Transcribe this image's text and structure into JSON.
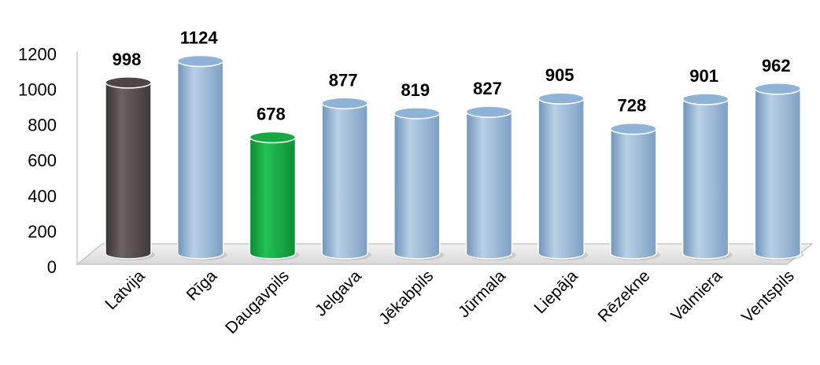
{
  "chart_data": {
    "type": "bar",
    "style": "3d-cylinder",
    "title": "",
    "xlabel": "",
    "ylabel": "",
    "categories": [
      "Latvija",
      "Rīga",
      "Daugavpils",
      "Jelgava",
      "Jēkabpils",
      "Jūrmala",
      "Liepāja",
      "Rēzekne",
      "Valmiera",
      "Ventspils"
    ],
    "values": [
      998,
      1124,
      678,
      877,
      819,
      827,
      905,
      728,
      901,
      962
    ],
    "ylim": [
      0,
      1200
    ],
    "yticks": [
      "0",
      "200",
      "400",
      "600",
      "800",
      "1000",
      "1200"
    ],
    "grid": false,
    "legend": "none",
    "data_labels": true,
    "bar_colors": [
      "#4e4646",
      "#8fb3d6",
      "#1aa844",
      "#8fb3d6",
      "#8fb3d6",
      "#8fb3d6",
      "#8fb3d6",
      "#8fb3d6",
      "#8fb3d6",
      "#8fb3d6"
    ]
  }
}
